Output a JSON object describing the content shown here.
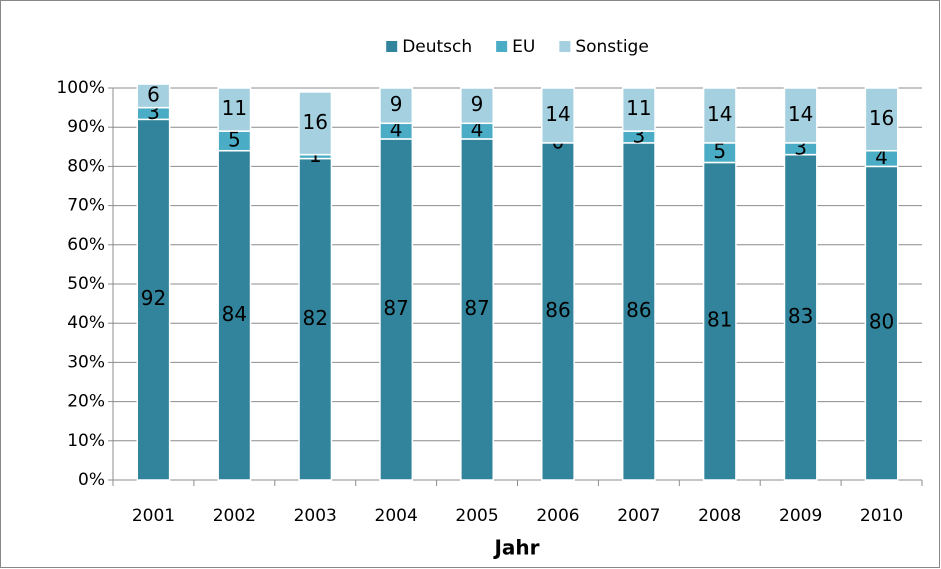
{
  "chart_data": {
    "type": "stacked_bar",
    "categories": [
      "2001",
      "2002",
      "2003",
      "2004",
      "2005",
      "2006",
      "2007",
      "2008",
      "2009",
      "2010"
    ],
    "series": [
      {
        "name": "Deutsch",
        "color": "#31849b",
        "values": [
          92,
          84,
          82,
          87,
          87,
          86,
          86,
          81,
          83,
          80
        ]
      },
      {
        "name": "EU",
        "color": "#4bacc6",
        "values": [
          3,
          5,
          1,
          4,
          4,
          0,
          3,
          5,
          3,
          4
        ]
      },
      {
        "name": "Sonstige",
        "color": "#a5d0e0",
        "values": [
          6,
          11,
          16,
          9,
          9,
          14,
          11,
          14,
          14,
          16
        ]
      }
    ],
    "x_label": "Jahr",
    "ylim": [
      0,
      100
    ],
    "yticks": [
      {
        "value": 0,
        "label": "0%"
      },
      {
        "value": 10,
        "label": "10%"
      },
      {
        "value": 20,
        "label": "20%"
      },
      {
        "value": 30,
        "label": "30%"
      },
      {
        "value": 40,
        "label": "40%"
      },
      {
        "value": 50,
        "label": "50%"
      },
      {
        "value": 60,
        "label": "60%"
      },
      {
        "value": 70,
        "label": "70%"
      },
      {
        "value": 80,
        "label": "80%"
      },
      {
        "value": 90,
        "label": "90%"
      },
      {
        "value": 100,
        "label": "100%"
      }
    ],
    "grid": true,
    "legend": "top"
  }
}
